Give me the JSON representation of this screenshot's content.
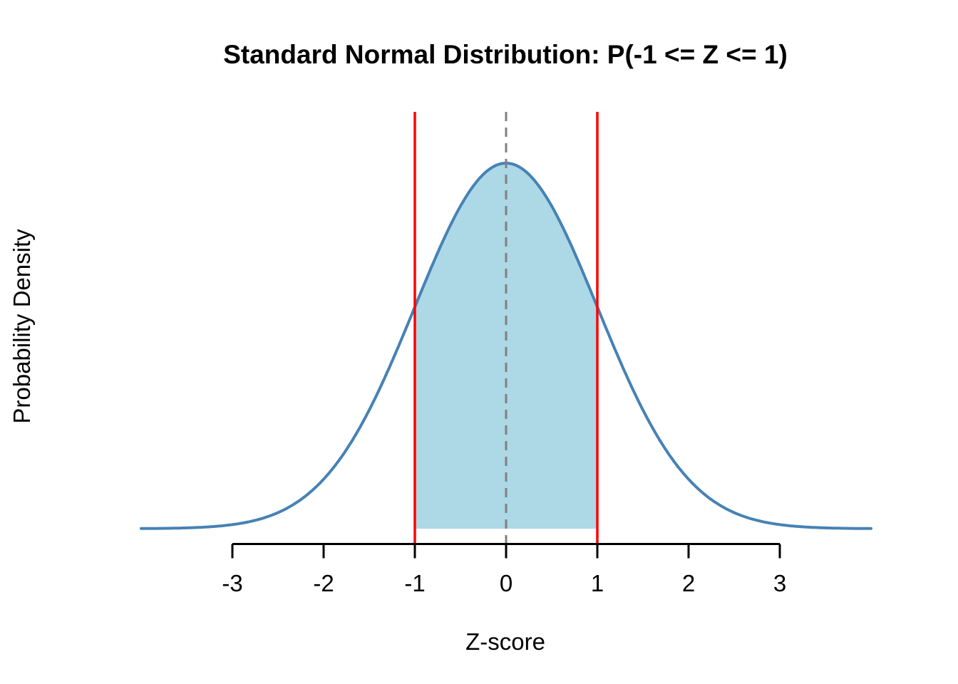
{
  "chart_data": {
    "type": "area",
    "title": "Standard Normal Distribution: P(-1 <= Z <= 1)",
    "xlabel": "Z-score",
    "ylabel": "Probability Density",
    "distribution": {
      "name": "standard_normal",
      "mean": 0,
      "sd": 1
    },
    "x_range": [
      -4,
      4
    ],
    "x_ticks": [
      -3,
      -2,
      -1,
      0,
      1,
      2,
      3
    ],
    "y_range": [
      0,
      0.455
    ],
    "grid": false,
    "legend": false,
    "curve_color": "#4682B4",
    "axis_color": "#000000",
    "shaded_region": {
      "from": -1,
      "to": 1,
      "fill_color": "#ADD8E6"
    },
    "reference_lines": [
      {
        "x": 0,
        "style": "dashed",
        "color": "#808080",
        "name": "mean-dashed-line"
      },
      {
        "x": -1,
        "style": "solid",
        "color": "#FF0000",
        "name": "lower-bound-line"
      },
      {
        "x": 1,
        "style": "solid",
        "color": "#FF0000",
        "name": "upper-bound-line"
      }
    ],
    "sample_points": [
      {
        "z": -4.0,
        "density": 0.0001
      },
      {
        "z": -3.5,
        "density": 0.0009
      },
      {
        "z": -3.0,
        "density": 0.0044
      },
      {
        "z": -2.5,
        "density": 0.0175
      },
      {
        "z": -2.0,
        "density": 0.054
      },
      {
        "z": -1.5,
        "density": 0.1295
      },
      {
        "z": -1.0,
        "density": 0.242
      },
      {
        "z": -0.5,
        "density": 0.3521
      },
      {
        "z": 0.0,
        "density": 0.3989
      },
      {
        "z": 0.5,
        "density": 0.3521
      },
      {
        "z": 1.0,
        "density": 0.242
      },
      {
        "z": 1.5,
        "density": 0.1295
      },
      {
        "z": 2.0,
        "density": 0.054
      },
      {
        "z": 2.5,
        "density": 0.0175
      },
      {
        "z": 3.0,
        "density": 0.0044
      },
      {
        "z": 3.5,
        "density": 0.0009
      },
      {
        "z": 4.0,
        "density": 0.0001
      }
    ]
  }
}
